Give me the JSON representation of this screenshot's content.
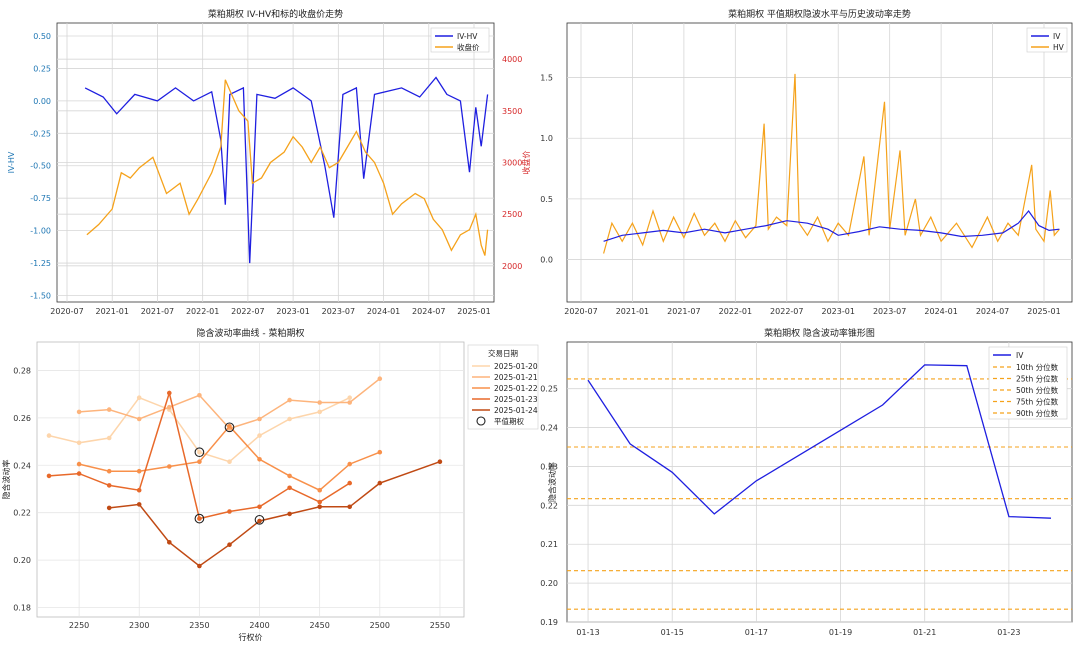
{
  "chart_data": [
    {
      "type": "line",
      "title": "菜粕期权 IV-HV和标的收盘价走势",
      "ylabel": "IV-HV",
      "y2label": "收盘价",
      "ylim": [
        -1.55,
        0.6
      ],
      "y2lim": [
        1650,
        4350
      ],
      "yticks": [
        "0.50",
        "0.25",
        "0.00",
        "-0.25",
        "-0.50",
        "-0.75",
        "-1.00",
        "-1.25",
        "-1.50"
      ],
      "y2ticks": [
        "4000",
        "3500",
        "3000",
        "2500",
        "2000"
      ],
      "xticks": [
        "2020-07",
        "2021-01",
        "2021-07",
        "2022-01",
        "2022-07",
        "2023-01",
        "2023-07",
        "2024-01",
        "2024-07",
        "2025-01"
      ],
      "legend": [
        "IV-HV",
        "收盘价"
      ],
      "legend_position": "top-right",
      "grid": true,
      "series": [
        {
          "name": "IV-HV",
          "color": "#1f1fe0",
          "axis": "left",
          "points": [
            [
              2020.7,
              0.1
            ],
            [
              2020.9,
              0.03
            ],
            [
              2021.05,
              -0.1
            ],
            [
              2021.25,
              0.05
            ],
            [
              2021.5,
              0.0
            ],
            [
              2021.7,
              0.1
            ],
            [
              2021.9,
              0.0
            ],
            [
              2022.1,
              0.07
            ],
            [
              2022.2,
              -0.3
            ],
            [
              2022.25,
              -0.8
            ],
            [
              2022.3,
              0.05
            ],
            [
              2022.45,
              0.1
            ],
            [
              2022.52,
              -1.25
            ],
            [
              2022.6,
              0.05
            ],
            [
              2022.8,
              0.02
            ],
            [
              2023.0,
              0.1
            ],
            [
              2023.2,
              0.0
            ],
            [
              2023.35,
              -0.5
            ],
            [
              2023.45,
              -0.9
            ],
            [
              2023.55,
              0.05
            ],
            [
              2023.7,
              0.1
            ],
            [
              2023.78,
              -0.6
            ],
            [
              2023.9,
              0.05
            ],
            [
              2024.2,
              0.1
            ],
            [
              2024.4,
              0.03
            ],
            [
              2024.58,
              0.18
            ],
            [
              2024.7,
              0.05
            ],
            [
              2024.85,
              0.0
            ],
            [
              2024.95,
              -0.55
            ],
            [
              2025.02,
              -0.05
            ],
            [
              2025.08,
              -0.35
            ],
            [
              2025.15,
              0.05
            ]
          ]
        },
        {
          "name": "收盘价",
          "color": "#f5a21b",
          "axis": "right",
          "points": [
            [
              2020.72,
              2300
            ],
            [
              2020.85,
              2400
            ],
            [
              2021.0,
              2550
            ],
            [
              2021.1,
              2900
            ],
            [
              2021.2,
              2850
            ],
            [
              2021.3,
              2950
            ],
            [
              2021.45,
              3050
            ],
            [
              2021.6,
              2700
            ],
            [
              2021.75,
              2800
            ],
            [
              2021.85,
              2500
            ],
            [
              2021.95,
              2650
            ],
            [
              2022.1,
              2900
            ],
            [
              2022.2,
              3150
            ],
            [
              2022.25,
              3800
            ],
            [
              2022.3,
              3700
            ],
            [
              2022.4,
              3500
            ],
            [
              2022.5,
              3400
            ],
            [
              2022.55,
              2800
            ],
            [
              2022.65,
              2850
            ],
            [
              2022.75,
              3000
            ],
            [
              2022.9,
              3100
            ],
            [
              2023.0,
              3250
            ],
            [
              2023.1,
              3150
            ],
            [
              2023.2,
              3000
            ],
            [
              2023.3,
              3150
            ],
            [
              2023.4,
              2950
            ],
            [
              2023.5,
              3000
            ],
            [
              2023.6,
              3150
            ],
            [
              2023.7,
              3300
            ],
            [
              2023.8,
              3100
            ],
            [
              2023.9,
              3000
            ],
            [
              2024.0,
              2800
            ],
            [
              2024.1,
              2500
            ],
            [
              2024.2,
              2600
            ],
            [
              2024.35,
              2700
            ],
            [
              2024.45,
              2650
            ],
            [
              2024.55,
              2450
            ],
            [
              2024.65,
              2350
            ],
            [
              2024.75,
              2150
            ],
            [
              2024.85,
              2300
            ],
            [
              2024.95,
              2350
            ],
            [
              2025.02,
              2500
            ],
            [
              2025.08,
              2200
            ],
            [
              2025.12,
              2100
            ],
            [
              2025.15,
              2350
            ]
          ]
        }
      ]
    },
    {
      "type": "line",
      "title": "菜粕期权 平值期权隐波水平与历史波动率走势",
      "ylim": [
        -0.35,
        1.95
      ],
      "yticks": [
        "1.5",
        "1.0",
        "0.5",
        "0.0"
      ],
      "xticks": [
        "2020-07",
        "2021-01",
        "2021-07",
        "2022-01",
        "2022-07",
        "2023-01",
        "2023-07",
        "2024-01",
        "2024-07",
        "2025-01"
      ],
      "legend": [
        "IV",
        "HV"
      ],
      "legend_position": "top-right",
      "grid": true,
      "series": [
        {
          "name": "IV",
          "color": "#1f1fe0",
          "points": [
            [
              2020.72,
              0.15
            ],
            [
              2020.9,
              0.2
            ],
            [
              2021.1,
              0.22
            ],
            [
              2021.3,
              0.24
            ],
            [
              2021.5,
              0.22
            ],
            [
              2021.7,
              0.25
            ],
            [
              2021.9,
              0.22
            ],
            [
              2022.1,
              0.25
            ],
            [
              2022.3,
              0.28
            ],
            [
              2022.5,
              0.32
            ],
            [
              2022.7,
              0.3
            ],
            [
              2022.9,
              0.25
            ],
            [
              2023.0,
              0.2
            ],
            [
              2023.2,
              0.23
            ],
            [
              2023.4,
              0.27
            ],
            [
              2023.6,
              0.25
            ],
            [
              2023.8,
              0.24
            ],
            [
              2024.0,
              0.22
            ],
            [
              2024.2,
              0.19
            ],
            [
              2024.4,
              0.2
            ],
            [
              2024.6,
              0.22
            ],
            [
              2024.75,
              0.3
            ],
            [
              2024.85,
              0.4
            ],
            [
              2024.95,
              0.28
            ],
            [
              2025.05,
              0.24
            ],
            [
              2025.15,
              0.25
            ]
          ]
        },
        {
          "name": "HV",
          "color": "#f5a21b",
          "points": [
            [
              2020.72,
              0.05
            ],
            [
              2020.8,
              0.3
            ],
            [
              2020.9,
              0.15
            ],
            [
              2021.0,
              0.3
            ],
            [
              2021.1,
              0.12
            ],
            [
              2021.2,
              0.4
            ],
            [
              2021.3,
              0.15
            ],
            [
              2021.4,
              0.35
            ],
            [
              2021.5,
              0.18
            ],
            [
              2021.6,
              0.38
            ],
            [
              2021.7,
              0.2
            ],
            [
              2021.8,
              0.3
            ],
            [
              2021.9,
              0.15
            ],
            [
              2022.0,
              0.32
            ],
            [
              2022.1,
              0.18
            ],
            [
              2022.2,
              0.28
            ],
            [
              2022.28,
              1.12
            ],
            [
              2022.32,
              0.25
            ],
            [
              2022.4,
              0.35
            ],
            [
              2022.5,
              0.28
            ],
            [
              2022.58,
              1.53
            ],
            [
              2022.62,
              0.3
            ],
            [
              2022.7,
              0.2
            ],
            [
              2022.8,
              0.35
            ],
            [
              2022.9,
              0.15
            ],
            [
              2023.0,
              0.3
            ],
            [
              2023.1,
              0.2
            ],
            [
              2023.25,
              0.85
            ],
            [
              2023.3,
              0.2
            ],
            [
              2023.45,
              1.3
            ],
            [
              2023.5,
              0.25
            ],
            [
              2023.6,
              0.9
            ],
            [
              2023.65,
              0.2
            ],
            [
              2023.75,
              0.5
            ],
            [
              2023.8,
              0.2
            ],
            [
              2023.9,
              0.35
            ],
            [
              2024.0,
              0.15
            ],
            [
              2024.15,
              0.3
            ],
            [
              2024.3,
              0.1
            ],
            [
              2024.45,
              0.35
            ],
            [
              2024.55,
              0.15
            ],
            [
              2024.65,
              0.3
            ],
            [
              2024.75,
              0.2
            ],
            [
              2024.88,
              0.78
            ],
            [
              2024.92,
              0.25
            ],
            [
              2025.0,
              0.15
            ],
            [
              2025.06,
              0.57
            ],
            [
              2025.1,
              0.2
            ],
            [
              2025.15,
              0.25
            ]
          ]
        }
      ]
    },
    {
      "type": "line",
      "title": "隐含波动率曲线 - 菜粕期权",
      "xlabel": "行权价",
      "ylabel": "隐含波动率",
      "xlim": [
        2215,
        2570
      ],
      "ylim": [
        0.176,
        0.292
      ],
      "xticks": [
        "2250",
        "2300",
        "2350",
        "2400",
        "2450",
        "2500",
        "2550"
      ],
      "yticks": [
        "0.28",
        "0.26",
        "0.24",
        "0.22",
        "0.20",
        "0.18"
      ],
      "legend_title": "交易日期",
      "legend_position": "top-right",
      "atm_label": "平值期权",
      "grid": true,
      "series": [
        {
          "name": "2025-01-20",
          "color": "#fdd5ab",
          "points": [
            [
              2225,
              0.2525
            ],
            [
              2250,
              0.2495
            ],
            [
              2275,
              0.2515
            ],
            [
              2300,
              0.2685
            ],
            [
              2325,
              0.2635
            ],
            [
              2350,
              0.2455
            ],
            [
              2375,
              0.2415
            ],
            [
              2400,
              0.2525
            ],
            [
              2425,
              0.2595
            ],
            [
              2450,
              0.2625
            ],
            [
              2475,
              0.2685
            ]
          ]
        },
        {
          "name": "2025-01-21",
          "color": "#fdb47c",
          "points": [
            [
              2250,
              0.2625
            ],
            [
              2275,
              0.2635
            ],
            [
              2300,
              0.2595
            ],
            [
              2325,
              0.2645
            ],
            [
              2350,
              0.2695
            ],
            [
              2375,
              0.2555
            ],
            [
              2400,
              0.2595
            ],
            [
              2425,
              0.2675
            ],
            [
              2450,
              0.2665
            ],
            [
              2475,
              0.2665
            ],
            [
              2500,
              0.2765
            ]
          ]
        },
        {
          "name": "2025-01-22",
          "color": "#f8904a",
          "points": [
            [
              2250,
              0.2405
            ],
            [
              2275,
              0.2375
            ],
            [
              2300,
              0.2375
            ],
            [
              2325,
              0.2395
            ],
            [
              2350,
              0.2415
            ],
            [
              2375,
              0.2565
            ],
            [
              2400,
              0.2425
            ],
            [
              2425,
              0.2355
            ],
            [
              2450,
              0.2295
            ],
            [
              2475,
              0.2405
            ],
            [
              2500,
              0.2455
            ]
          ]
        },
        {
          "name": "2025-01-23",
          "color": "#e8692a",
          "points": [
            [
              2225,
              0.2355
            ],
            [
              2250,
              0.2365
            ],
            [
              2275,
              0.2315
            ],
            [
              2300,
              0.2295
            ],
            [
              2325,
              0.2705
            ],
            [
              2350,
              0.2175
            ],
            [
              2375,
              0.2205
            ],
            [
              2400,
              0.2225
            ],
            [
              2425,
              0.2305
            ],
            [
              2450,
              0.2245
            ],
            [
              2475,
              0.2325
            ]
          ]
        },
        {
          "name": "2025-01-24",
          "color": "#c04a14",
          "points": [
            [
              2275,
              0.222
            ],
            [
              2300,
              0.2235
            ],
            [
              2325,
              0.2075
            ],
            [
              2350,
              0.1975
            ],
            [
              2375,
              0.2065
            ],
            [
              2400,
              0.2165
            ],
            [
              2425,
              0.2195
            ],
            [
              2450,
              0.2225
            ],
            [
              2475,
              0.2225
            ],
            [
              2500,
              0.2325
            ],
            [
              2550,
              0.2415
            ]
          ]
        }
      ],
      "atm_points": [
        [
          2350,
          0.2455
        ],
        [
          2375,
          0.256
        ],
        [
          2350,
          0.2175
        ],
        [
          2400,
          0.217
        ]
      ]
    },
    {
      "type": "line",
      "title": "菜粕期权 隐含波动率锥形图",
      "ylabel": "隐含波动率",
      "xlim": [
        -0.5,
        11.5
      ],
      "ylim": [
        0.19,
        0.262
      ],
      "xticks": [
        "01-13",
        "01-15",
        "01-17",
        "01-19",
        "01-21",
        "01-23"
      ],
      "yticks": [
        "0.25",
        "0.24",
        "0.23",
        "0.22",
        "0.21",
        "0.20",
        "0.19"
      ],
      "legend_position": "top-right",
      "grid": true,
      "series": [
        {
          "name": "IV",
          "color": "#1f1fe0",
          "points": [
            [
              0,
              0.2522
            ],
            [
              1,
              0.2358
            ],
            [
              2,
              0.2285
            ],
            [
              3,
              0.2178
            ],
            [
              4,
              0.2263
            ],
            [
              5,
              0.2328
            ],
            [
              6,
              0.2393
            ],
            [
              7,
              0.2458
            ],
            [
              8,
              0.2561
            ],
            [
              9,
              0.2559
            ],
            [
              10,
              0.2171
            ],
            [
              11,
              0.2167
            ]
          ]
        }
      ],
      "percentiles": [
        {
          "name": "10th 分位数",
          "value": 0.1933
        },
        {
          "name": "25th 分位数",
          "value": 0.2032
        },
        {
          "name": "50th 分位数",
          "value": 0.2217
        },
        {
          "name": "75th 分位数",
          "value": 0.235
        },
        {
          "name": "90th 分位数",
          "value": 0.2525
        }
      ],
      "percentile_color": "#f5a21b"
    }
  ]
}
